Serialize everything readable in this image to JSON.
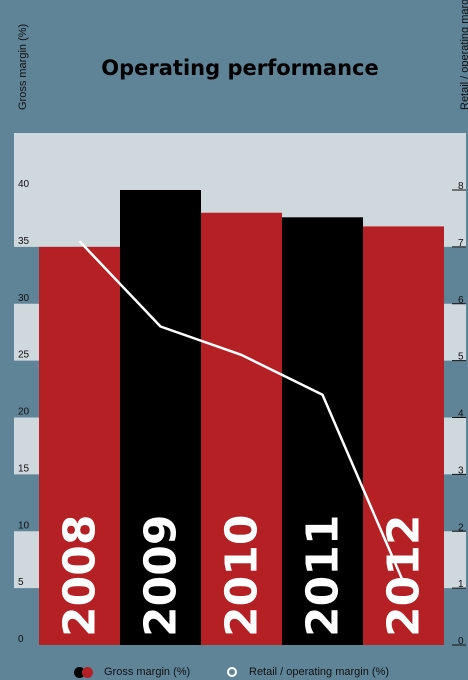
{
  "chart_data": {
    "type": "bar",
    "title": "Operating performance",
    "categories": [
      "2008",
      "2009",
      "2010",
      "2011",
      "2012"
    ],
    "series": [
      {
        "name": "Gross margin (%)",
        "kind": "bar",
        "axis": "left",
        "values": [
          35,
          40,
          38,
          37.6,
          36.8
        ]
      },
      {
        "name": "Retail / operating margin (%)",
        "kind": "line",
        "axis": "right",
        "values": [
          7.1,
          5.6,
          5.1,
          4.4,
          1.1
        ]
      }
    ],
    "ylabel_left": "Gross margin (%)",
    "ylabel_right": "Retail / operating margin (%)",
    "ylim_left": [
      0,
      40
    ],
    "ylim_right": [
      0,
      8
    ],
    "yticks_left": [
      "0",
      "5",
      "10",
      "15",
      "20",
      "25",
      "30",
      "35",
      "40"
    ],
    "yticks_right": [
      "0",
      "1",
      "2",
      "3",
      "4",
      "5",
      "6",
      "7",
      "8"
    ],
    "legend_position": "bottom",
    "colors": {
      "background": "#5f8498",
      "plot_band": "#cfd8dd",
      "bar_red": "#b52025",
      "bar_black": "#000000",
      "line": "#ffffff",
      "text": "#111111"
    }
  }
}
